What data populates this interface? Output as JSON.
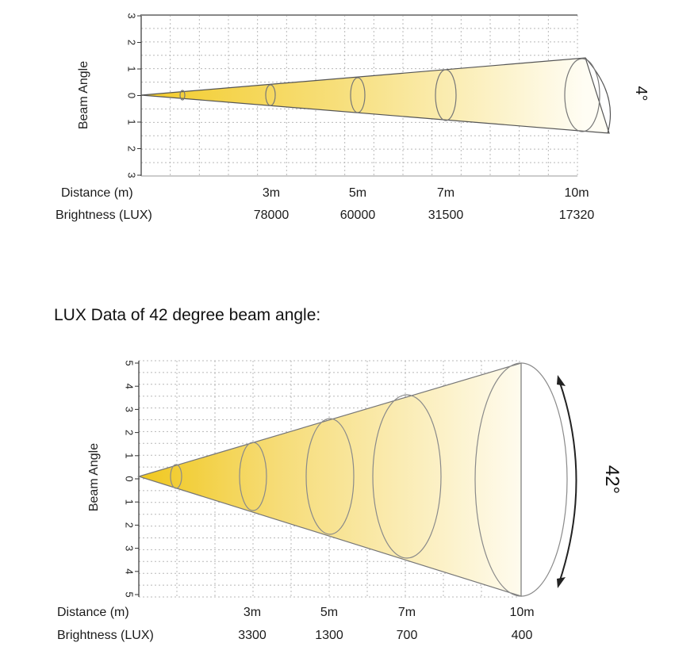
{
  "heading": "LUX Data of 42 degree beam angle:",
  "diagrams": [
    {
      "id": "beam-4",
      "y_axis_title": "Beam Angle",
      "y_ticks": [
        "3",
        "2",
        "1",
        "0",
        "1",
        "2",
        "3"
      ],
      "angle_label": "4°",
      "rows": {
        "distance_label": "Distance (m)",
        "brightness_label": "Brightness (LUX)",
        "distances": [
          "3m",
          "5m",
          "7m",
          "10m"
        ],
        "brightness": [
          "78000",
          "60000",
          "31500",
          "17320"
        ]
      }
    },
    {
      "id": "beam-42",
      "y_axis_title": "Beam Angle",
      "y_ticks": [
        "5",
        "4",
        "3",
        "2",
        "1",
        "0",
        "1",
        "2",
        "3",
        "4",
        "5"
      ],
      "angle_label": "42°",
      "rows": {
        "distance_label": "Distance (m)",
        "brightness_label": "Brightness (LUX)",
        "distances": [
          "3m",
          "5m",
          "7m",
          "10m"
        ],
        "brightness": [
          "3300",
          "1300",
          "700",
          "400"
        ]
      }
    }
  ],
  "colors": {
    "beam_start": "#f5d23a",
    "beam_end": "#ffffff",
    "grid": "#b8b8b8",
    "outline": "#8a8a8a"
  }
}
